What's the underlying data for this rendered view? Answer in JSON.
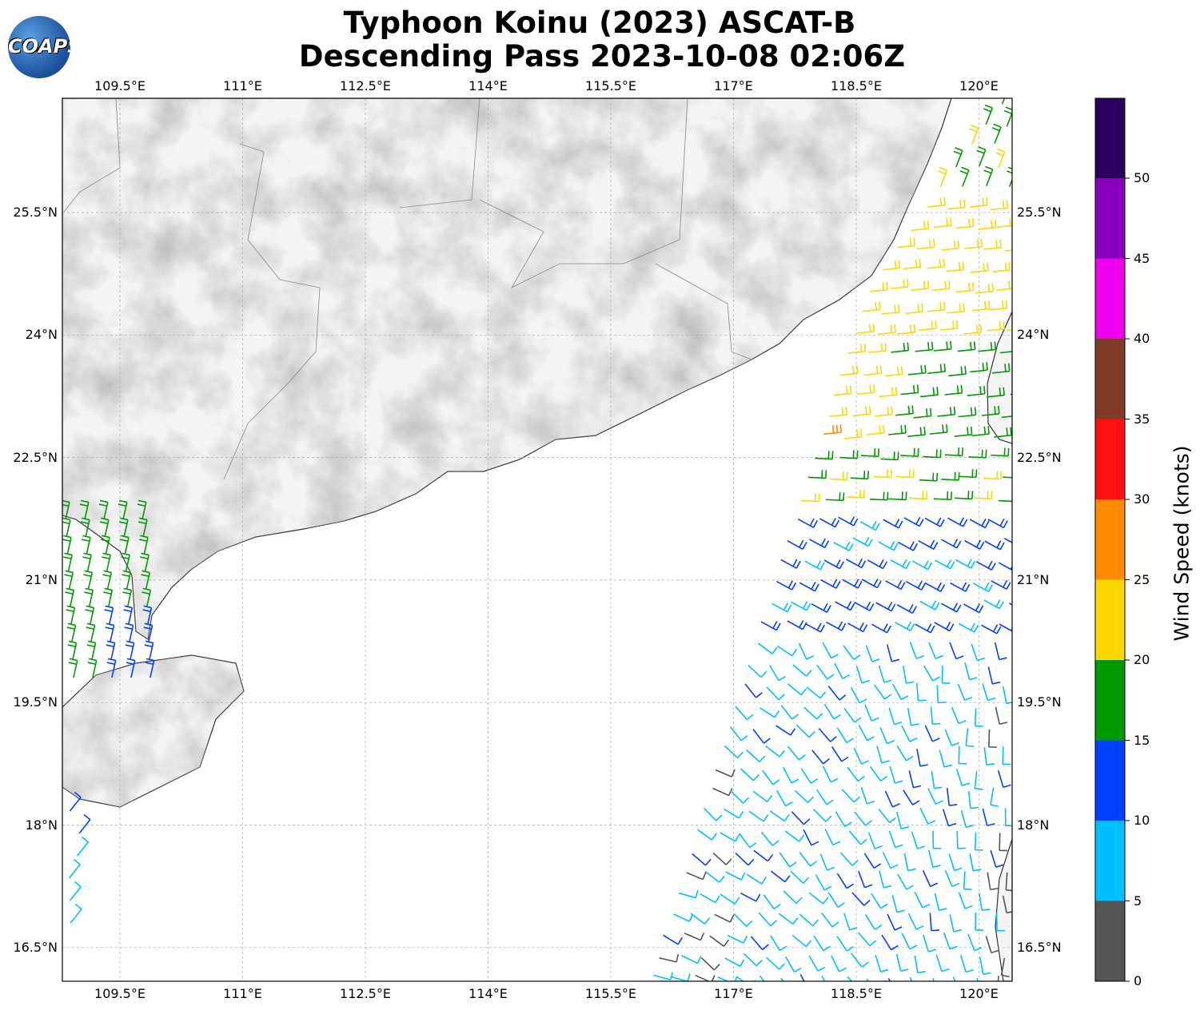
{
  "title_line1": "Typhoon Koinu (2023) ASCAT-B",
  "title_line2": "Descending Pass 2023-10-08 02:06Z",
  "logo_text": "COAPS",
  "lon_ticks": [
    "109.5°E",
    "111°E",
    "112.5°E",
    "114°E",
    "115.5°E",
    "117°E",
    "118.5°E",
    "120°E"
  ],
  "lat_ticks": [
    "25.5°N",
    "24°N",
    "22.5°N",
    "21°N",
    "19.5°N",
    "18°N",
    "16.5°N"
  ],
  "colorbar": {
    "label": "Wind Speed (knots)",
    "ticks": [
      "0",
      "5",
      "10",
      "15",
      "20",
      "25",
      "30",
      "35",
      "40",
      "45",
      "50"
    ],
    "colors": [
      "#555555",
      "#00bfff",
      "#0040ff",
      "#009900",
      "#ffd700",
      "#ff8c00",
      "#ff1010",
      "#803a28",
      "#ee00ee",
      "#8800bb",
      "#2a005f"
    ]
  }
}
